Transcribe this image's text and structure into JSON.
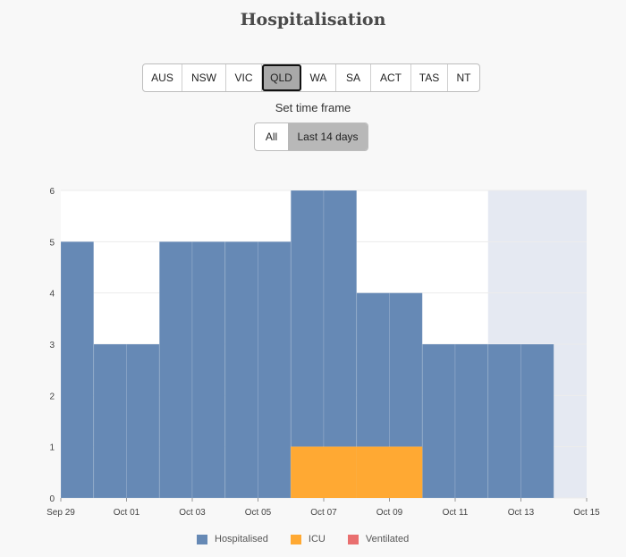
{
  "title": "Hospitalisation",
  "regions": [
    {
      "label": "AUS",
      "active": false
    },
    {
      "label": "NSW",
      "active": false
    },
    {
      "label": "VIC",
      "active": false
    },
    {
      "label": "QLD",
      "active": true
    },
    {
      "label": "WA",
      "active": false
    },
    {
      "label": "SA",
      "active": false
    },
    {
      "label": "ACT",
      "active": false
    },
    {
      "label": "TAS",
      "active": false
    },
    {
      "label": "NT",
      "active": false
    }
  ],
  "timeframe": {
    "label": "Set time frame",
    "options": [
      {
        "label": "All",
        "active": false
      },
      {
        "label": "Last 14 days",
        "active": true
      }
    ]
  },
  "legend": [
    {
      "label": "Hospitalised",
      "color": "#6689b5"
    },
    {
      "label": "ICU",
      "color": "#ffa933"
    },
    {
      "label": "Ventilated",
      "color": "#e96f6f"
    }
  ],
  "chart_data": {
    "type": "bar",
    "categories": [
      "Sep 29",
      "Sep 30",
      "Oct 01",
      "Oct 02",
      "Oct 03",
      "Oct 04",
      "Oct 05",
      "Oct 06",
      "Oct 07",
      "Oct 08",
      "Oct 09",
      "Oct 10",
      "Oct 11",
      "Oct 12",
      "Oct 13"
    ],
    "series": [
      {
        "name": "Hospitalised",
        "color": "#6689b5",
        "values": [
          5,
          3,
          3,
          5,
          5,
          5,
          5,
          6,
          6,
          4,
          4,
          3,
          3,
          3,
          3
        ]
      },
      {
        "name": "ICU",
        "color": "#ffa933",
        "values": [
          0,
          0,
          0,
          0,
          0,
          0,
          0,
          1,
          1,
          1,
          1,
          0,
          0,
          0,
          0
        ]
      },
      {
        "name": "Ventilated",
        "color": "#e96f6f",
        "values": [
          0,
          0,
          0,
          0,
          0,
          0,
          0,
          0,
          0,
          0,
          0,
          0,
          0,
          0,
          0
        ]
      }
    ],
    "ylim": [
      0,
      6
    ],
    "yticks": [
      0,
      1,
      2,
      3,
      4,
      5,
      6
    ],
    "xtick_labels": [
      "Sep 29",
      "Oct 01",
      "Oct 03",
      "Oct 05",
      "Oct 07",
      "Oct 09",
      "Oct 11",
      "Oct 13",
      "Oct 15"
    ],
    "highlight_from": "Oct 12",
    "highlight_color": "#e5e9f2",
    "grid": true
  }
}
